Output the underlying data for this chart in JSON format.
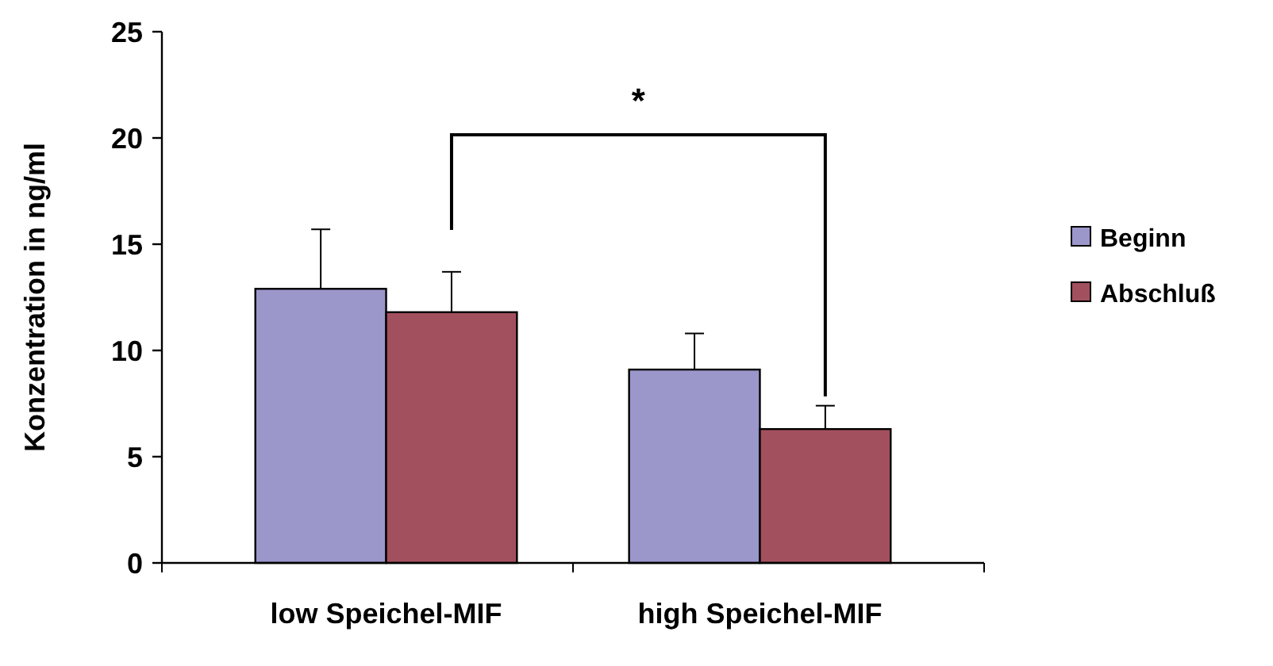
{
  "chart_data": {
    "type": "bar",
    "ylabel": "Konzentration in ng/ml",
    "categories": [
      "low Speichel-MIF",
      "high Speichel-MIF"
    ],
    "series": [
      {
        "name": "Beginn",
        "color": "#9b97cb",
        "values": [
          12.9,
          9.1
        ],
        "errors": [
          [
            12.9,
            15.7
          ],
          [
            9.1,
            10.8
          ]
        ]
      },
      {
        "name": "Abschluß",
        "color": "#a3505e",
        "values": [
          11.8,
          6.3
        ],
        "errors": [
          [
            11.8,
            13.7
          ],
          [
            6.3,
            7.4
          ]
        ]
      }
    ],
    "ylim": [
      0,
      25
    ],
    "yticks": [
      0,
      5,
      10,
      15,
      20,
      25
    ],
    "grid": false,
    "legend": "right",
    "annotations": [
      "*"
    ]
  }
}
